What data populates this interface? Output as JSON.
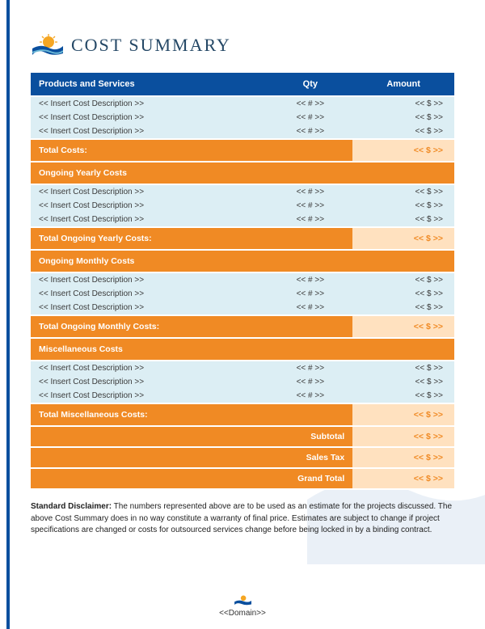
{
  "title": "COST SUMMARY",
  "colors": {
    "blue_header": "#0a4f9e",
    "orange": "#f08a24",
    "orange_light": "#ffe1bf",
    "data_bg": "#dceef4",
    "title_color": "#254866"
  },
  "columns": {
    "desc": "Products and Services",
    "qty": "Qty",
    "amount": "Amount"
  },
  "placeholders": {
    "desc": "<< Insert Cost Description >>",
    "qty": "<< # >>",
    "amount": "<< $ >>"
  },
  "sections": [
    {
      "rows": 3,
      "total_label": "Total Costs:",
      "total_amount": "<< $ >>"
    },
    {
      "heading": "Ongoing Yearly Costs",
      "rows": 3,
      "total_label": "Total Ongoing Yearly Costs:",
      "total_amount": "<< $ >>"
    },
    {
      "heading": "Ongoing Monthly Costs",
      "rows": 3,
      "total_label": "Total Ongoing Monthly Costs:",
      "total_amount": "<< $ >>"
    },
    {
      "heading": "Miscellaneous Costs",
      "rows": 3,
      "total_label": "Total Miscellaneous Costs:",
      "total_amount": "<< $ >>"
    }
  ],
  "summary": [
    {
      "label": "Subtotal",
      "amount": "<< $ >>"
    },
    {
      "label": "Sales Tax",
      "amount": "<< $ >>"
    },
    {
      "label": "Grand Total",
      "amount": "<< $ >>"
    }
  ],
  "disclaimer": {
    "label": "Standard Disclaimer:",
    "text": " The numbers represented above are to be used as an estimate for the projects discussed. The above Cost Summary does in no way constitute a warranty of final price.  Estimates are subject to change if project specifications are changed or costs for outsourced services change before being locked in by a binding contract."
  },
  "footer": "<<Domain>>"
}
